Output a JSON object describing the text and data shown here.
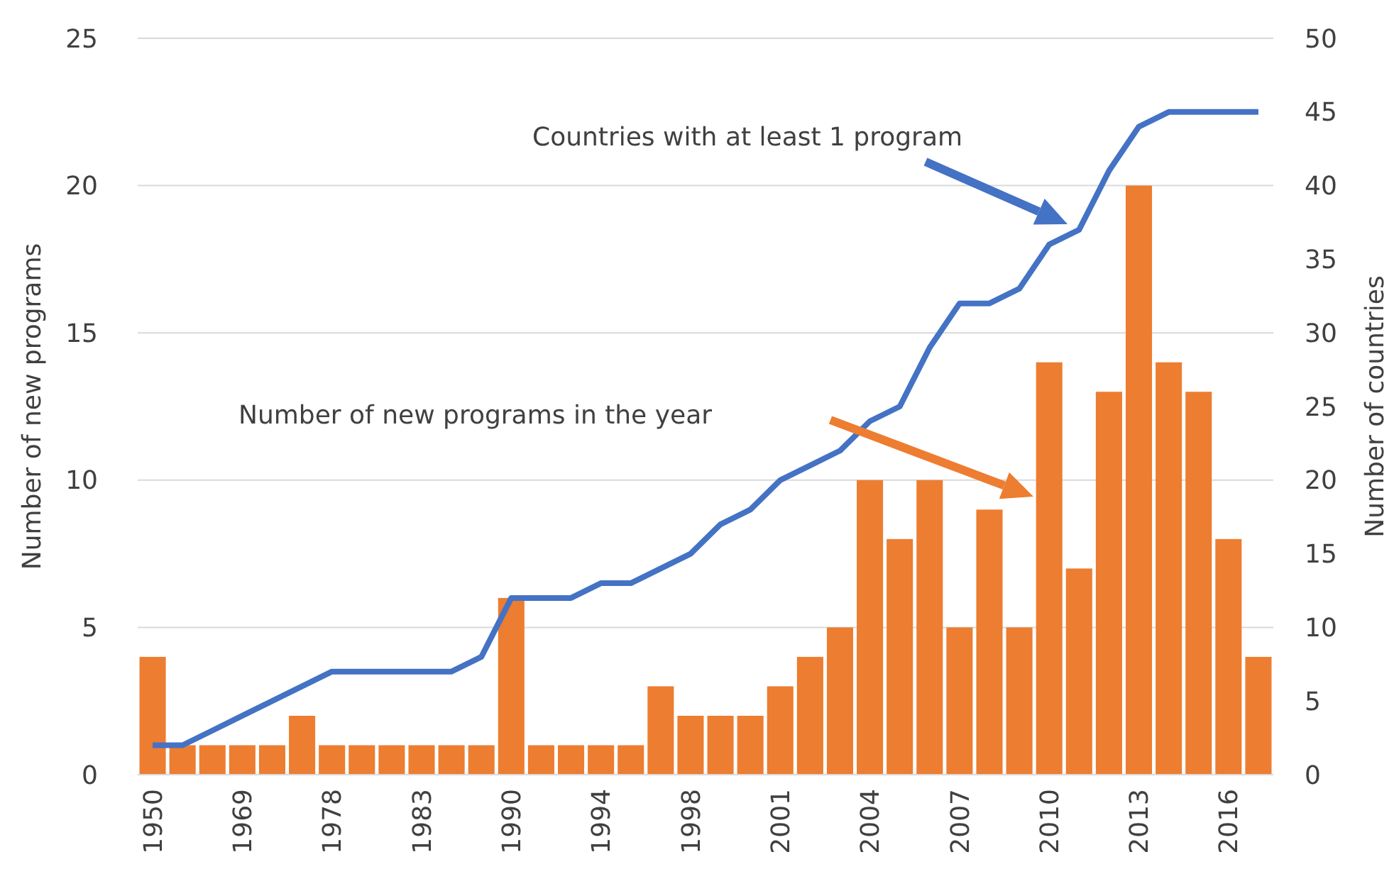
{
  "chart_data": {
    "type": "bar",
    "ylabel": "Number of new programs",
    "y2label": "Number of countries",
    "categories": [
      "1950",
      null,
      null,
      "1969",
      null,
      null,
      "1978",
      null,
      null,
      "1983",
      null,
      null,
      "1990",
      null,
      null,
      "1994",
      null,
      null,
      "1998",
      null,
      null,
      "2001",
      null,
      null,
      "2004",
      null,
      null,
      "2007",
      null,
      null,
      "2010",
      null,
      null,
      "2013",
      null,
      null,
      "2016",
      null
    ],
    "series": [
      {
        "color": "#ed7d31",
        "values": [
          4,
          1,
          1,
          1,
          1,
          2,
          1,
          1,
          1,
          1,
          1,
          1,
          6,
          1,
          1,
          1,
          1,
          3,
          2,
          2,
          2,
          3,
          4,
          5,
          10,
          8,
          10,
          5,
          9,
          5,
          14,
          7,
          13,
          20,
          14,
          13,
          8,
          4
        ]
      },
      {
        "type": "line",
        "axis": "y2",
        "color": "#4472c4",
        "values": [
          2,
          2,
          3,
          4,
          5,
          6,
          7,
          7,
          7,
          7,
          7,
          8,
          12,
          12,
          12,
          13,
          13,
          14,
          15,
          17,
          18,
          20,
          21,
          22,
          24,
          25,
          29,
          32,
          32,
          33,
          36,
          37,
          41,
          44,
          45,
          45,
          45,
          45
        ]
      }
    ],
    "ylim": [
      0,
      25
    ],
    "yticks": [
      0,
      5,
      10,
      15,
      20,
      25
    ],
    "y2lim": [
      0,
      50
    ],
    "y2ticks": [
      0,
      5,
      10,
      15,
      20,
      25,
      30,
      35,
      40,
      45,
      50
    ],
    "grid": "y",
    "annotations": [
      "Countries with at least 1 program",
      "Number of new programs in the year"
    ]
  }
}
